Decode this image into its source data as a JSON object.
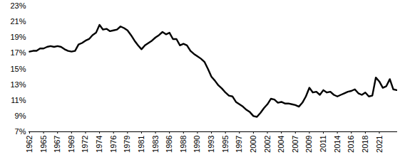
{
  "chart_data": {
    "type": "line",
    "color": "#000000",
    "grid": false,
    "categories": [
      "1962",
      null,
      null,
      null,
      "1965",
      null,
      null,
      null,
      "1967",
      null,
      null,
      null,
      "1969",
      null,
      null,
      null,
      "1972",
      null,
      null,
      null,
      "1974",
      null,
      null,
      null,
      "1976",
      null,
      null,
      null,
      "1979",
      null,
      null,
      null,
      "1981",
      null,
      null,
      null,
      "1983",
      null,
      null,
      null,
      "1986",
      null,
      null,
      null,
      "1988",
      null,
      null,
      null,
      "1990",
      null,
      null,
      null,
      "1993",
      null,
      null,
      null,
      "1995",
      null,
      null,
      null,
      "1997",
      null,
      null,
      null,
      "2000",
      null,
      null,
      null,
      "2002",
      null,
      null,
      null,
      "2004",
      null,
      null,
      null,
      "2007",
      null,
      null,
      null,
      "2009",
      null,
      null,
      null,
      "2011",
      null,
      null,
      null,
      "2014",
      null,
      null,
      null,
      "2016",
      null,
      null,
      null,
      "2018",
      null,
      null,
      null,
      "2021",
      null,
      null,
      null,
      null,
      null
    ],
    "values": [
      17.2,
      17.3,
      17.3,
      17.6,
      17.6,
      17.8,
      17.9,
      17.8,
      17.9,
      17.8,
      17.5,
      17.3,
      17.2,
      17.3,
      18.1,
      18.3,
      18.6,
      18.8,
      19.3,
      19.6,
      20.6,
      20.0,
      20.1,
      19.8,
      19.9,
      20.0,
      20.4,
      20.2,
      19.9,
      19.3,
      18.6,
      18.0,
      17.5,
      18.0,
      18.3,
      18.6,
      19.0,
      19.3,
      19.7,
      19.4,
      19.6,
      18.8,
      18.8,
      18.0,
      18.2,
      18.0,
      17.3,
      16.9,
      16.6,
      16.3,
      15.9,
      15.0,
      14.0,
      13.5,
      12.9,
      12.5,
      12.0,
      11.6,
      11.5,
      10.8,
      10.5,
      10.2,
      9.8,
      9.5,
      9.0,
      8.9,
      9.4,
      10.0,
      10.5,
      11.2,
      11.1,
      10.7,
      10.8,
      10.6,
      10.6,
      10.5,
      10.4,
      10.2,
      10.7,
      11.5,
      12.6,
      12.0,
      12.1,
      11.7,
      12.3,
      12.0,
      12.1,
      11.7,
      11.5,
      11.7,
      11.9,
      12.1,
      12.2,
      12.4,
      11.9,
      11.7,
      12.0,
      11.5,
      11.6,
      13.9,
      13.4,
      12.6,
      12.8,
      13.7,
      12.4,
      12.3
    ],
    "ylim": [
      7,
      23
    ],
    "yticks": [
      {
        "value": 7,
        "label": "7%"
      },
      {
        "value": 9,
        "label": "9%"
      },
      {
        "value": 11,
        "label": "11%"
      },
      {
        "value": 13,
        "label": "13%"
      },
      {
        "value": 15,
        "label": "15%"
      },
      {
        "value": 17,
        "label": "17%"
      },
      {
        "value": 19,
        "label": "19%"
      },
      {
        "value": 21,
        "label": "21%"
      },
      {
        "value": 23,
        "label": "23%"
      }
    ]
  }
}
